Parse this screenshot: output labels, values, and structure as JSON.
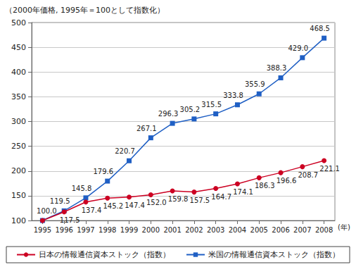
{
  "chart_data": {
    "type": "line",
    "y_label": "（2000年価格, 1995年＝100として指数化）",
    "x_label": "(年)",
    "categories": [
      "1995",
      "1996",
      "1997",
      "1998",
      "1999",
      "2000",
      "2001",
      "2002",
      "2003",
      "2004",
      "2005",
      "2006",
      "2007",
      "2008"
    ],
    "series": [
      {
        "name": "米国の情報通信資本ストック（指数）",
        "color": "#1f5fc4",
        "marker": "square",
        "line_style": "solid",
        "values": [
          100.0,
          119.5,
          145.8,
          179.6,
          220.7,
          267.1,
          296.3,
          305.2,
          315.5,
          333.8,
          355.9,
          388.3,
          429.0,
          468.5
        ],
        "value_labels": [
          null,
          "119.5",
          "145.8",
          "179.6",
          "220.7",
          "267.1",
          "296.3",
          "305.2",
          "315.5",
          "333.8",
          "355.9",
          "388.3",
          "429.0",
          "468.5"
        ]
      },
      {
        "name": "日本の情報通信資本ストック（指数）",
        "color": "#cc0022",
        "marker": "circle",
        "line_style": "solid",
        "values": [
          100.0,
          117.5,
          137.4,
          145.2,
          147.4,
          152.0,
          159.8,
          157.5,
          164.7,
          174.1,
          186.3,
          196.6,
          208.7,
          221.1
        ],
        "value_labels": [
          "100.0",
          "117.5",
          "137.4",
          "145.2",
          "147.4",
          "152.0",
          "159.8",
          "157.5",
          "164.7",
          "174.1",
          "186.3",
          "196.6",
          "208.7",
          "221.1"
        ]
      }
    ],
    "legend_order": [
      "日本の情報通信資本ストック（指数）",
      "米国の情報通信資本ストック（指数）"
    ],
    "ylim": [
      100,
      500
    ],
    "yticks": [
      100,
      150,
      200,
      250,
      300,
      350,
      400,
      450,
      500
    ],
    "grid": true,
    "legend": "bottom",
    "data_labels": true
  }
}
